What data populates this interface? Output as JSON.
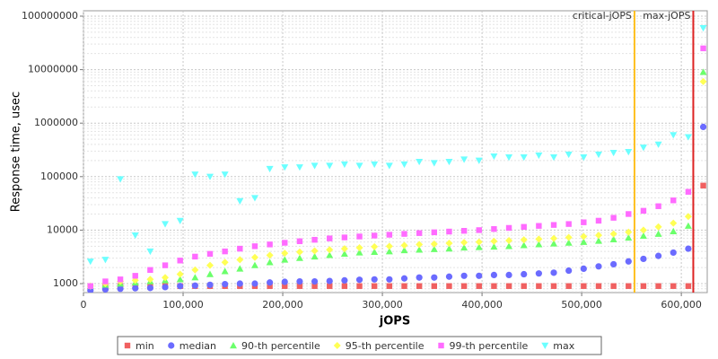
{
  "chart_data": {
    "type": "scatter",
    "x_label": "jOPS",
    "y_label": "Response time, usec",
    "log_y": true,
    "grid": true,
    "legend": "bottom",
    "xlim": [
      0,
      626000
    ],
    "ylim": [
      680,
      126000000
    ],
    "xticks": [
      0,
      {
        "value": 100000,
        "label": "100,000"
      },
      {
        "value": 200000,
        "label": "200,000"
      },
      {
        "value": 300000,
        "label": "300,000"
      },
      {
        "value": 400000,
        "label": "400,000"
      },
      {
        "value": 500000,
        "label": "500,000"
      },
      {
        "value": 600000,
        "label": "600,000"
      }
    ],
    "yticks": [
      1000,
      10000,
      100000,
      1000000,
      10000000,
      100000000
    ],
    "annotations": [
      {
        "label": "critical-jOPS",
        "x": 553000,
        "color": "#ffc020"
      },
      {
        "label": "max-jOPS",
        "x": 612000,
        "color": "#dd2222"
      }
    ],
    "x": [
      7000,
      22000,
      37000,
      52000,
      67000,
      82000,
      97000,
      112000,
      127000,
      142000,
      157000,
      172000,
      187000,
      202000,
      217000,
      232000,
      247000,
      262000,
      277000,
      292000,
      307000,
      322000,
      337000,
      352000,
      367000,
      382000,
      397000,
      412000,
      427000,
      442000,
      457000,
      472000,
      487000,
      502000,
      517000,
      532000,
      547000,
      562000,
      577000,
      592000,
      607000,
      622000
    ],
    "series": [
      {
        "name": "min",
        "color": "#f06060",
        "marker": "square",
        "values": [
          900,
          900,
          900,
          900,
          900,
          900,
          900,
          900,
          900,
          900,
          900,
          900,
          900,
          900,
          900,
          900,
          900,
          900,
          900,
          900,
          900,
          900,
          900,
          900,
          900,
          900,
          900,
          900,
          900,
          900,
          900,
          900,
          900,
          900,
          900,
          900,
          900,
          900,
          900,
          900,
          900,
          68000
        ]
      },
      {
        "name": "median",
        "color": "#6b6bff",
        "marker": "circle",
        "values": [
          750,
          780,
          800,
          820,
          830,
          860,
          900,
          920,
          950,
          980,
          1000,
          1000,
          1050,
          1080,
          1100,
          1100,
          1120,
          1150,
          1180,
          1200,
          1200,
          1250,
          1300,
          1300,
          1350,
          1400,
          1400,
          1450,
          1450,
          1500,
          1550,
          1600,
          1750,
          1900,
          2100,
          2300,
          2600,
          2900,
          3300,
          3800,
          4500,
          850000
        ]
      },
      {
        "name": "90-th percentile",
        "color": "#6bff6b",
        "marker": "triangle",
        "values": [
          900,
          950,
          1000,
          1050,
          1100,
          1150,
          1200,
          1300,
          1500,
          1700,
          1900,
          2200,
          2500,
          2800,
          3000,
          3200,
          3400,
          3600,
          3800,
          3900,
          4000,
          4200,
          4300,
          4400,
          4500,
          4700,
          4800,
          4900,
          5000,
          5200,
          5400,
          5600,
          5800,
          6000,
          6300,
          6700,
          7200,
          7800,
          8500,
          9500,
          12000,
          9000000
        ]
      },
      {
        "name": "95-th percentile",
        "color": "#ffff55",
        "marker": "diamond",
        "values": [
          900,
          1000,
          1100,
          1150,
          1200,
          1300,
          1500,
          1800,
          2200,
          2500,
          2800,
          3100,
          3400,
          3700,
          3900,
          4100,
          4300,
          4500,
          4700,
          4900,
          5000,
          5200,
          5400,
          5500,
          5700,
          5900,
          6000,
          6200,
          6400,
          6600,
          6800,
          7000,
          7300,
          7600,
          8000,
          8500,
          9200,
          10000,
          11500,
          13500,
          18000,
          6000000
        ]
      },
      {
        "name": "99-th percentile",
        "color": "#ff6bff",
        "marker": "square",
        "values": [
          900,
          1100,
          1200,
          1400,
          1800,
          2200,
          2700,
          3200,
          3600,
          4000,
          4500,
          5000,
          5400,
          5800,
          6200,
          6600,
          7000,
          7300,
          7600,
          7900,
          8200,
          8500,
          8800,
          9100,
          9400,
          9700,
          10000,
          10500,
          11000,
          11500,
          12000,
          12500,
          13000,
          14000,
          15000,
          17000,
          20000,
          23000,
          28000,
          36000,
          52000,
          25000000
        ]
      },
      {
        "name": "max",
        "color": "#6bffff",
        "marker": "triangle-down",
        "values": [
          2600,
          2800,
          90000,
          8000,
          4000,
          13000,
          15000,
          110000,
          100000,
          110000,
          35000,
          40000,
          140000,
          150000,
          150000,
          160000,
          160000,
          170000,
          160000,
          170000,
          160000,
          170000,
          190000,
          180000,
          190000,
          210000,
          200000,
          240000,
          230000,
          230000,
          250000,
          230000,
          260000,
          230000,
          260000,
          280000,
          290000,
          350000,
          400000,
          600000,
          550000,
          60000000
        ]
      }
    ]
  }
}
